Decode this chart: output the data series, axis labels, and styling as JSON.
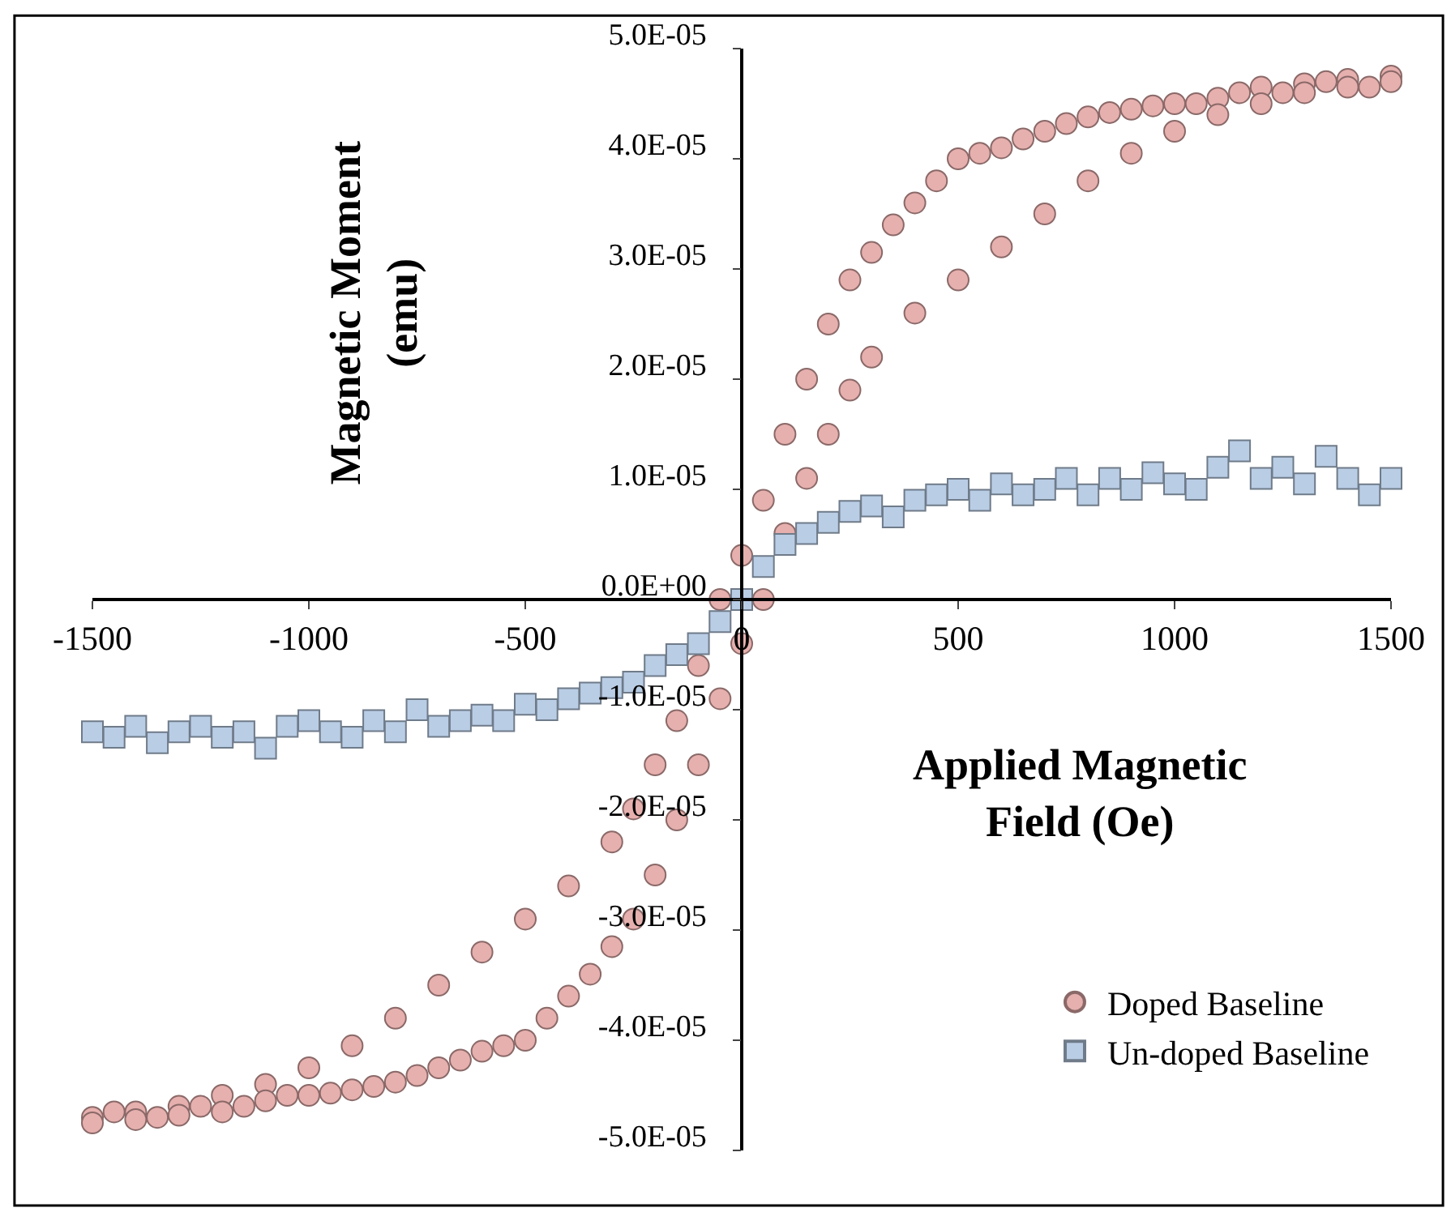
{
  "chart_data": {
    "type": "scatter",
    "xlabel": "Applied Magnetic Field (Oe)",
    "ylabel": "Magnetic Moment (emu)",
    "xlim": [
      -1500,
      1500
    ],
    "xticks": [
      -1500,
      -1000,
      -500,
      0,
      500,
      1000,
      1500
    ],
    "ylim": [
      -5e-05,
      5e-05
    ],
    "yticks": [
      {
        "value": -5e-05,
        "label": "-5.0E-05"
      },
      {
        "value": -4e-05,
        "label": "-4.0E-05"
      },
      {
        "value": -3e-05,
        "label": "-3.0E-05"
      },
      {
        "value": -2e-05,
        "label": "-2.0E-05"
      },
      {
        "value": -1e-05,
        "label": "-1.0E-05"
      },
      {
        "value": 0,
        "label": "0.0E+00"
      },
      {
        "value": 1e-05,
        "label": "1.0E-05"
      },
      {
        "value": 2e-05,
        "label": "2.0E-05"
      },
      {
        "value": 3e-05,
        "label": "3.0E-05"
      },
      {
        "value": 4e-05,
        "label": "4.0E-05"
      },
      {
        "value": 5e-05,
        "label": "5.0E-05"
      }
    ],
    "legend": "bottom right",
    "series": [
      {
        "name": "Doped Baseline",
        "color": "#e6b0ae",
        "marker": "circle",
        "x": [
          1500,
          1450,
          1400,
          1350,
          1300,
          1250,
          1200,
          1150,
          1100,
          1050,
          1000,
          950,
          900,
          850,
          800,
          750,
          700,
          650,
          600,
          550,
          500,
          450,
          400,
          350,
          300,
          250,
          200,
          150,
          100,
          50,
          0,
          -50,
          -100,
          -150,
          -200,
          -250,
          -300,
          -400,
          -500,
          -600,
          -700,
          -800,
          -900,
          -1000,
          -1100,
          -1200,
          -1300,
          -1400,
          -1500,
          -1500,
          -1450,
          -1400,
          -1350,
          -1300,
          -1250,
          -1200,
          -1150,
          -1100,
          -1050,
          -1000,
          -950,
          -900,
          -850,
          -800,
          -750,
          -700,
          -650,
          -600,
          -550,
          -500,
          -450,
          -400,
          -350,
          -300,
          -250,
          -200,
          -150,
          -100,
          -50,
          0,
          50,
          100,
          150,
          200,
          250,
          300,
          400,
          500,
          600,
          700,
          800,
          900,
          1000,
          1100,
          1200,
          1300,
          1400,
          1500
        ],
        "values": [
          4.75e-05,
          4.65e-05,
          4.72e-05,
          4.7e-05,
          4.68e-05,
          4.6e-05,
          4.65e-05,
          4.6e-05,
          4.55e-05,
          4.5e-05,
          4.5e-05,
          4.48e-05,
          4.45e-05,
          4.42e-05,
          4.38e-05,
          4.32e-05,
          4.25e-05,
          4.18e-05,
          4.1e-05,
          4.05e-05,
          4e-05,
          3.8e-05,
          3.6e-05,
          3.4e-05,
          3.15e-05,
          2.9e-05,
          2.5e-05,
          2e-05,
          1.5e-05,
          9e-06,
          4e-06,
          0.0,
          -6e-06,
          -1.1e-05,
          -1.5e-05,
          -1.9e-05,
          -2.2e-05,
          -2.6e-05,
          -2.9e-05,
          -3.2e-05,
          -3.5e-05,
          -3.8e-05,
          -4.05e-05,
          -4.25e-05,
          -4.4e-05,
          -4.5e-05,
          -4.6e-05,
          -4.65e-05,
          -4.7e-05,
          -4.75e-05,
          -4.65e-05,
          -4.72e-05,
          -4.7e-05,
          -4.68e-05,
          -4.6e-05,
          -4.65e-05,
          -4.6e-05,
          -4.55e-05,
          -4.5e-05,
          -4.5e-05,
          -4.48e-05,
          -4.45e-05,
          -4.42e-05,
          -4.38e-05,
          -4.32e-05,
          -4.25e-05,
          -4.18e-05,
          -4.1e-05,
          -4.05e-05,
          -4e-05,
          -3.8e-05,
          -3.6e-05,
          -3.4e-05,
          -3.15e-05,
          -2.9e-05,
          -2.5e-05,
          -2e-05,
          -1.5e-05,
          -9e-06,
          -4e-06,
          0.0,
          6e-06,
          1.1e-05,
          1.5e-05,
          1.9e-05,
          2.2e-05,
          2.6e-05,
          2.9e-05,
          3.2e-05,
          3.5e-05,
          3.8e-05,
          4.05e-05,
          4.25e-05,
          4.4e-05,
          4.5e-05,
          4.6e-05,
          4.65e-05,
          4.7e-05
        ]
      },
      {
        "name": "Un-doped Baseline",
        "color": "#b9cde5",
        "marker": "square",
        "x": [
          -1500,
          -1450,
          -1400,
          -1350,
          -1300,
          -1250,
          -1200,
          -1150,
          -1100,
          -1050,
          -1000,
          -950,
          -900,
          -850,
          -800,
          -750,
          -700,
          -650,
          -600,
          -550,
          -500,
          -450,
          -400,
          -350,
          -300,
          -250,
          -200,
          -150,
          -100,
          -50,
          0,
          50,
          100,
          150,
          200,
          250,
          300,
          350,
          400,
          450,
          500,
          550,
          600,
          650,
          700,
          750,
          800,
          850,
          900,
          950,
          1000,
          1050,
          1100,
          1150,
          1200,
          1250,
          1300,
          1350,
          1400,
          1450,
          1500
        ],
        "values": [
          -1.2e-05,
          -1.25e-05,
          -1.15e-05,
          -1.3e-05,
          -1.2e-05,
          -1.15e-05,
          -1.25e-05,
          -1.2e-05,
          -1.35e-05,
          -1.15e-05,
          -1.1e-05,
          -1.2e-05,
          -1.25e-05,
          -1.1e-05,
          -1.2e-05,
          -1e-05,
          -1.15e-05,
          -1.1e-05,
          -1.05e-05,
          -1.1e-05,
          -9.5e-06,
          -1e-05,
          -9e-06,
          -8.5e-06,
          -8e-06,
          -7.5e-06,
          -6e-06,
          -5e-06,
          -4e-06,
          -2e-06,
          0.0,
          3e-06,
          5e-06,
          6e-06,
          7e-06,
          8e-06,
          8.5e-06,
          7.5e-06,
          9e-06,
          9.5e-06,
          1e-05,
          9e-06,
          1.05e-05,
          9.5e-06,
          1e-05,
          1.1e-05,
          9.5e-06,
          1.1e-05,
          1e-05,
          1.15e-05,
          1.05e-05,
          1e-05,
          1.2e-05,
          1.35e-05,
          1.1e-05,
          1.2e-05,
          1.05e-05,
          1.3e-05,
          1.1e-05,
          9.5e-06,
          1.1e-05
        ]
      }
    ]
  }
}
